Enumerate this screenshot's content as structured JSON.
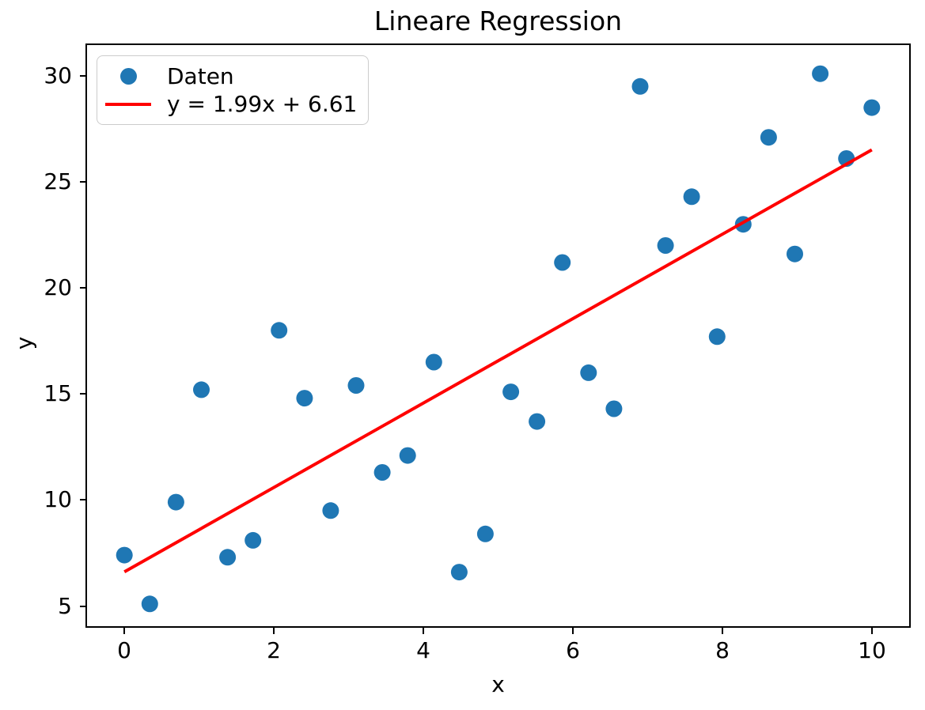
{
  "figure": {
    "background": "#ffffff",
    "text_color": "#000000"
  },
  "chart_data": {
    "type": "scatter",
    "title": "Lineare Regression",
    "xlabel": "x",
    "ylabel": "y",
    "xlim": [
      -0.5,
      10.5
    ],
    "ylim": [
      4.05,
      31.45
    ],
    "xticks": [
      0,
      2,
      4,
      6,
      8,
      10
    ],
    "yticks": [
      5,
      10,
      15,
      20,
      25,
      30
    ],
    "grid": false,
    "legend_position": "upper left",
    "series": [
      {
        "name": "Daten",
        "type": "scatter",
        "marker": "circle",
        "color": "#1f77b4",
        "points": [
          [
            0.0,
            7.4
          ],
          [
            0.34,
            5.1
          ],
          [
            0.69,
            9.9
          ],
          [
            1.03,
            15.2
          ],
          [
            1.38,
            7.3
          ],
          [
            1.72,
            8.1
          ],
          [
            2.07,
            18.0
          ],
          [
            2.41,
            14.8
          ],
          [
            2.76,
            9.5
          ],
          [
            3.1,
            15.4
          ],
          [
            3.45,
            11.3
          ],
          [
            3.79,
            12.1
          ],
          [
            4.14,
            16.5
          ],
          [
            4.48,
            6.6
          ],
          [
            4.83,
            8.4
          ],
          [
            5.17,
            15.1
          ],
          [
            5.52,
            13.7
          ],
          [
            5.86,
            21.2
          ],
          [
            6.21,
            16.0
          ],
          [
            6.55,
            14.3
          ],
          [
            6.9,
            29.5
          ],
          [
            7.24,
            22.0
          ],
          [
            7.59,
            24.3
          ],
          [
            7.93,
            17.7
          ],
          [
            8.28,
            23.0
          ],
          [
            8.62,
            27.1
          ],
          [
            8.97,
            21.6
          ],
          [
            9.31,
            30.1
          ],
          [
            9.66,
            26.1
          ],
          [
            10.0,
            28.5
          ]
        ]
      },
      {
        "name": "y = 1.99x + 6.61",
        "type": "line",
        "color": "#ff0000",
        "equation": {
          "slope": 1.99,
          "intercept": 6.61
        },
        "x_start": 0.0,
        "x_end": 10.0
      }
    ]
  }
}
